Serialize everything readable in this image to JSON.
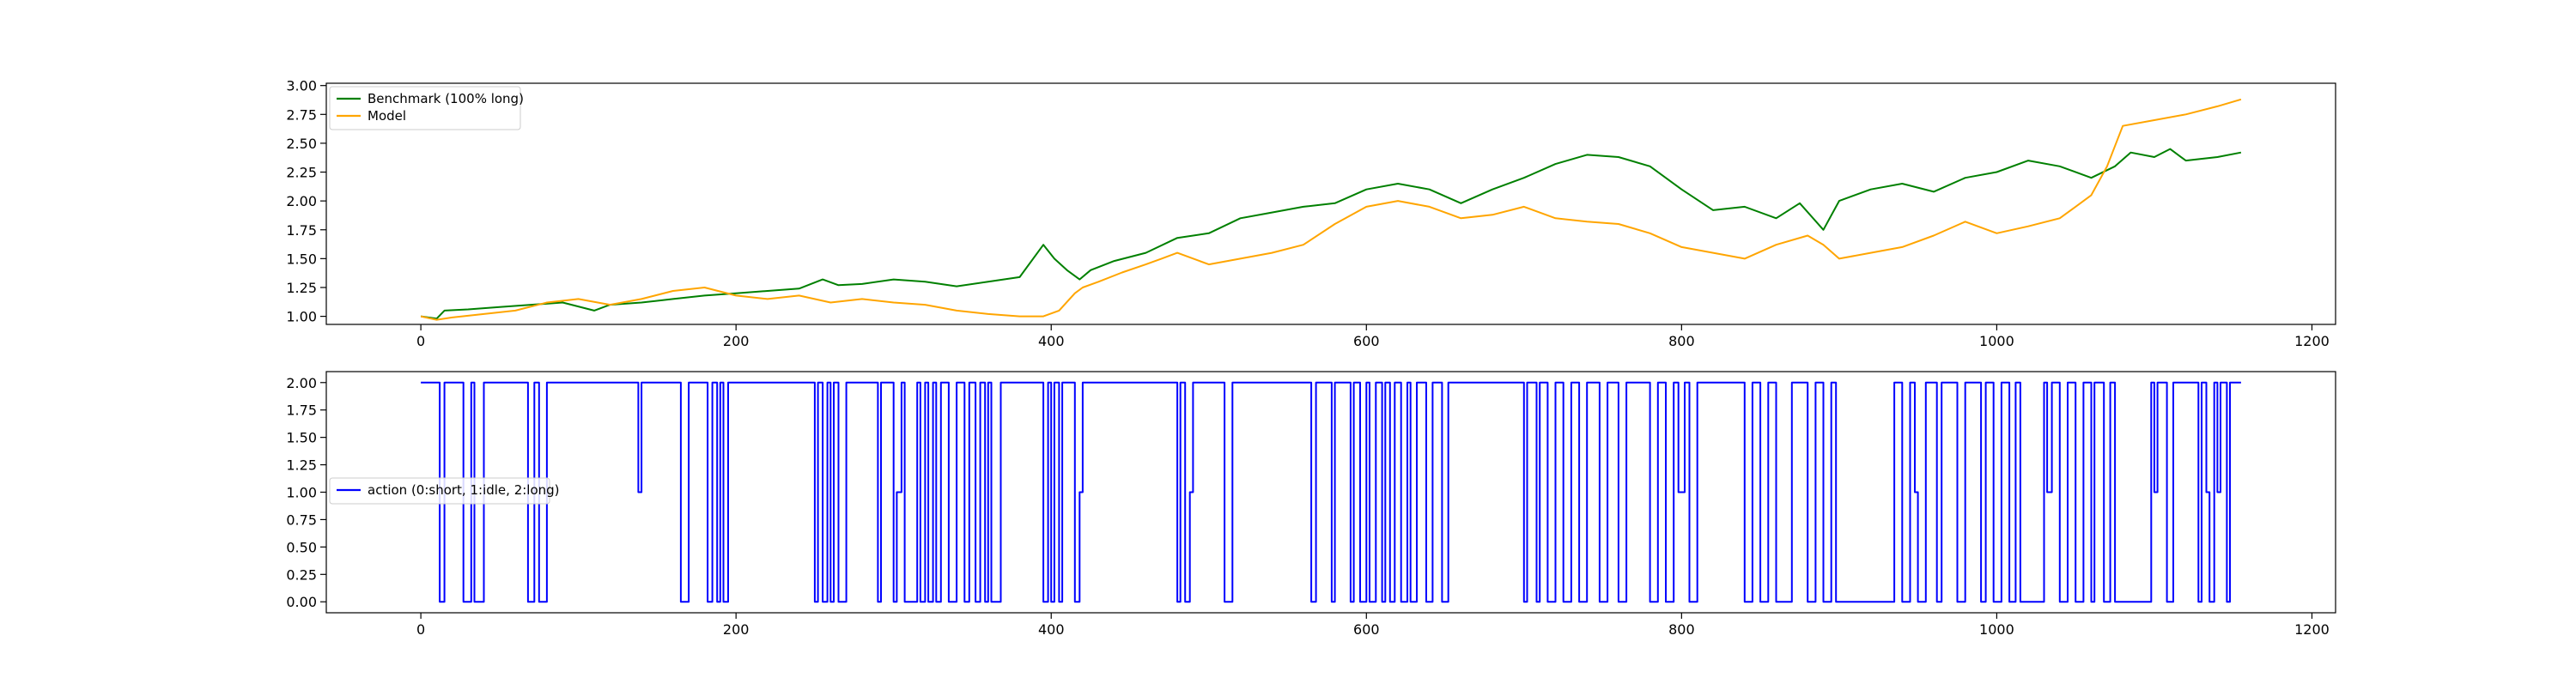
{
  "chart_data": [
    {
      "type": "line",
      "title": "",
      "xlabel": "",
      "ylabel": "",
      "xlim": [
        -60,
        1215
      ],
      "ylim": [
        0.93,
        3.02
      ],
      "xticks": [
        0,
        200,
        400,
        600,
        800,
        1000,
        1200
      ],
      "xtick_labels": [
        "0",
        "200",
        "400",
        "600",
        "800",
        "1000",
        "1200"
      ],
      "yticks": [
        1.0,
        1.25,
        1.5,
        1.75,
        2.0,
        2.25,
        2.5,
        2.75,
        3.0
      ],
      "ytick_labels": [
        "1.00",
        "1.25",
        "1.50",
        "1.75",
        "2.00",
        "2.25",
        "2.50",
        "2.75",
        "3.00"
      ],
      "grid": false,
      "legend": "upper left",
      "series": [
        {
          "name": "Benchmark (100% long)",
          "color": "#008000",
          "x": [
            0,
            10,
            15,
            30,
            50,
            70,
            90,
            110,
            120,
            140,
            160,
            180,
            200,
            220,
            240,
            255,
            265,
            280,
            300,
            320,
            340,
            360,
            380,
            395,
            402,
            410,
            418,
            425,
            440,
            460,
            480,
            500,
            520,
            540,
            560,
            580,
            600,
            620,
            640,
            660,
            680,
            700,
            720,
            740,
            760,
            780,
            800,
            820,
            840,
            860,
            875,
            890,
            900,
            920,
            940,
            960,
            980,
            1000,
            1020,
            1040,
            1060,
            1075,
            1085,
            1100,
            1110,
            1120,
            1140,
            1155
          ],
          "y": [
            1.0,
            0.98,
            1.05,
            1.06,
            1.08,
            1.1,
            1.12,
            1.05,
            1.1,
            1.12,
            1.15,
            1.18,
            1.2,
            1.22,
            1.24,
            1.32,
            1.27,
            1.28,
            1.32,
            1.3,
            1.26,
            1.3,
            1.34,
            1.62,
            1.5,
            1.4,
            1.32,
            1.4,
            1.48,
            1.55,
            1.68,
            1.72,
            1.85,
            1.9,
            1.95,
            1.98,
            2.1,
            2.15,
            2.1,
            1.98,
            2.1,
            2.2,
            2.32,
            2.4,
            2.38,
            2.3,
            2.1,
            1.92,
            1.95,
            1.85,
            1.98,
            1.75,
            2.0,
            2.1,
            2.15,
            2.08,
            2.2,
            2.25,
            2.35,
            2.3,
            2.2,
            2.3,
            2.42,
            2.38,
            2.45,
            2.35,
            2.38,
            2.42
          ]
        },
        {
          "name": "Model",
          "color": "#ffa500",
          "x": [
            0,
            10,
            20,
            40,
            60,
            80,
            100,
            120,
            140,
            160,
            180,
            200,
            220,
            240,
            260,
            280,
            300,
            320,
            340,
            360,
            380,
            395,
            405,
            415,
            420,
            430,
            445,
            460,
            470,
            480,
            500,
            520,
            540,
            560,
            580,
            600,
            620,
            640,
            660,
            680,
            700,
            720,
            740,
            760,
            780,
            800,
            820,
            840,
            860,
            880,
            890,
            900,
            920,
            940,
            960,
            980,
            1000,
            1020,
            1040,
            1050,
            1060,
            1070,
            1080,
            1100,
            1120,
            1140,
            1155
          ],
          "y": [
            1.0,
            0.97,
            0.99,
            1.02,
            1.05,
            1.12,
            1.15,
            1.1,
            1.15,
            1.22,
            1.25,
            1.18,
            1.15,
            1.18,
            1.12,
            1.15,
            1.12,
            1.1,
            1.05,
            1.02,
            1.0,
            1.0,
            1.05,
            1.2,
            1.25,
            1.3,
            1.38,
            1.45,
            1.5,
            1.55,
            1.45,
            1.5,
            1.55,
            1.62,
            1.8,
            1.95,
            2.0,
            1.95,
            1.85,
            1.88,
            1.95,
            1.85,
            1.82,
            1.8,
            1.72,
            1.6,
            1.55,
            1.5,
            1.62,
            1.7,
            1.62,
            1.5,
            1.55,
            1.6,
            1.7,
            1.82,
            1.72,
            1.78,
            1.85,
            1.95,
            2.05,
            2.3,
            2.65,
            2.7,
            2.75,
            2.82,
            2.88
          ]
        }
      ]
    },
    {
      "type": "line",
      "title": "",
      "xlabel": "",
      "ylabel": "",
      "xlim": [
        -60,
        1215
      ],
      "ylim": [
        -0.1,
        2.1
      ],
      "xticks": [
        0,
        200,
        400,
        600,
        800,
        1000,
        1200
      ],
      "xtick_labels": [
        "0",
        "200",
        "400",
        "600",
        "800",
        "1000",
        "1200"
      ],
      "yticks": [
        0.0,
        0.25,
        0.5,
        0.75,
        1.0,
        1.25,
        1.5,
        1.75,
        2.0
      ],
      "ytick_labels": [
        "0.00",
        "0.25",
        "0.50",
        "0.75",
        "1.00",
        "1.25",
        "1.50",
        "1.75",
        "2.00"
      ],
      "grid": false,
      "legend": "center left",
      "series": [
        {
          "name": "action (0:short, 1:idle, 2:long)",
          "color": "#0000ff",
          "draw": "steps",
          "x": [
            0,
            12,
            15,
            20,
            27,
            32,
            34,
            40,
            68,
            72,
            75,
            80,
            138,
            140,
            165,
            170,
            182,
            185,
            188,
            190,
            192,
            195,
            250,
            252,
            255,
            258,
            260,
            262,
            265,
            270,
            290,
            292,
            300,
            302,
            305,
            307,
            315,
            317,
            320,
            322,
            325,
            327,
            330,
            335,
            340,
            345,
            348,
            352,
            355,
            358,
            360,
            362,
            368,
            372,
            395,
            398,
            400,
            402,
            405,
            407,
            415,
            418,
            420,
            480,
            482,
            485,
            488,
            490,
            510,
            515,
            565,
            568,
            578,
            580,
            590,
            592,
            596,
            600,
            602,
            606,
            610,
            612,
            615,
            618,
            622,
            626,
            628,
            632,
            638,
            642,
            648,
            652,
            700,
            702,
            708,
            710,
            715,
            720,
            725,
            730,
            735,
            740,
            748,
            753,
            760,
            765,
            780,
            785,
            790,
            795,
            798,
            802,
            805,
            810,
            840,
            845,
            850,
            855,
            860,
            870,
            880,
            885,
            890,
            895,
            898,
            935,
            940,
            945,
            948,
            950,
            955,
            962,
            965,
            975,
            980,
            990,
            993,
            998,
            1003,
            1008,
            1012,
            1015,
            1030,
            1032,
            1035,
            1040,
            1045,
            1050,
            1055,
            1060,
            1062,
            1068,
            1072,
            1075,
            1098,
            1100,
            1102,
            1108,
            1112,
            1128,
            1130,
            1133,
            1135,
            1138,
            1140,
            1142,
            1146,
            1148,
            1155
          ],
          "y": [
            2,
            0,
            2,
            2,
            0,
            2,
            0,
            2,
            0,
            2,
            0,
            2,
            1,
            2,
            0,
            2,
            0,
            2,
            0,
            2,
            0,
            2,
            0,
            2,
            0,
            2,
            0,
            2,
            0,
            2,
            0,
            2,
            0,
            1,
            2,
            0,
            2,
            0,
            2,
            0,
            2,
            0,
            2,
            0,
            2,
            0,
            2,
            0,
            2,
            0,
            2,
            0,
            2,
            2,
            0,
            2,
            0,
            2,
            0,
            2,
            0,
            1,
            2,
            0,
            2,
            0,
            1,
            2,
            0,
            2,
            0,
            2,
            0,
            2,
            0,
            2,
            0,
            2,
            0,
            2,
            0,
            2,
            0,
            2,
            0,
            2,
            0,
            2,
            0,
            2,
            0,
            2,
            0,
            2,
            0,
            2,
            0,
            2,
            0,
            2,
            0,
            2,
            0,
            2,
            0,
            2,
            0,
            2,
            0,
            2,
            1,
            2,
            0,
            2,
            0,
            2,
            0,
            2,
            0,
            2,
            0,
            2,
            0,
            2,
            0,
            2,
            0,
            2,
            1,
            0,
            2,
            0,
            2,
            0,
            2,
            0,
            2,
            0,
            2,
            0,
            2,
            0,
            2,
            1,
            2,
            0,
            2,
            0,
            2,
            0,
            2,
            0,
            2,
            0,
            2,
            1,
            2,
            0,
            2,
            0,
            2,
            1,
            0,
            2,
            1,
            2,
            0,
            2,
            2
          ]
        }
      ]
    }
  ]
}
